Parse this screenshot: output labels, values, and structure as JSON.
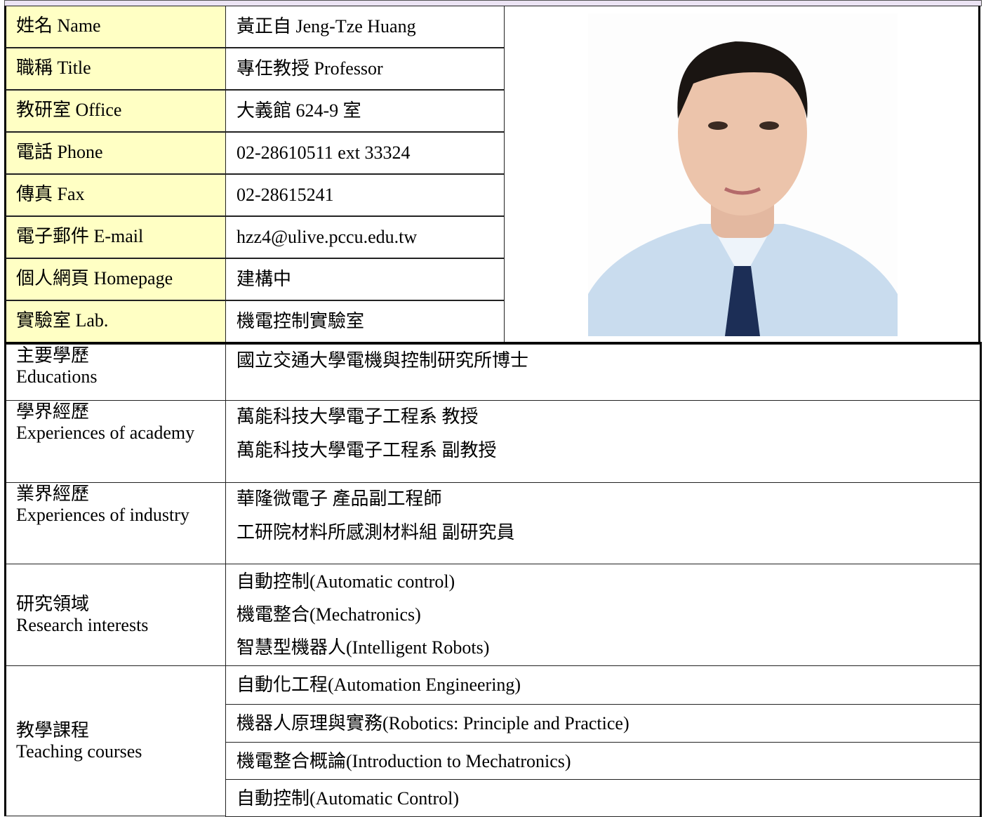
{
  "profile": [
    {
      "label": "姓名 Name",
      "value": "黃正自 Jeng-Tze Huang"
    },
    {
      "label": "職稱 Title",
      "value": "專任教授 Professor"
    },
    {
      "label": "教研室 Office",
      "value": "大義館 624-9 室"
    },
    {
      "label": "電話 Phone",
      "value": "02-28610511 ext 33324"
    },
    {
      "label": "傳真 Fax",
      "value": "02-28615241"
    },
    {
      "label": "電子郵件 E-mail",
      "value": "hzz4@ulive.pccu.edu.tw"
    },
    {
      "label": "個人網頁 Homepage",
      "value": "建構中"
    },
    {
      "label": "實驗室 Lab.",
      "value": "機電控制實驗室"
    }
  ],
  "sections": [
    {
      "label": "主要學歷",
      "label_en": "Educations",
      "items": [
        "國立交通大學電機與控制研究所博士"
      ]
    },
    {
      "label": "學界經歷",
      "label_en": "Experiences of academy",
      "items": [
        "萬能科技大學電子工程系 教授",
        "萬能科技大學電子工程系 副教授"
      ]
    },
    {
      "label": "業界經歷",
      "label_en": "Experiences of industry",
      "items": [
        "華隆微電子 產品副工程師",
        "工研院材料所感測材料組 副研究員"
      ]
    },
    {
      "label": "研究領域",
      "label_en": "Research interests",
      "items": [
        "自動控制(Automatic control)",
        "機電整合(Mechatronics)",
        "智慧型機器人(Intelligent Robots)"
      ]
    },
    {
      "label": "教學課程",
      "label_en": "Teaching courses",
      "items": [
        "自動化工程(Automation Engineering)",
        "機器人原理與實務(Robotics: Principle and Practice)",
        "機電整合概論(Introduction to Mechatronics)",
        "自動控制(Automatic Control)"
      ]
    }
  ]
}
